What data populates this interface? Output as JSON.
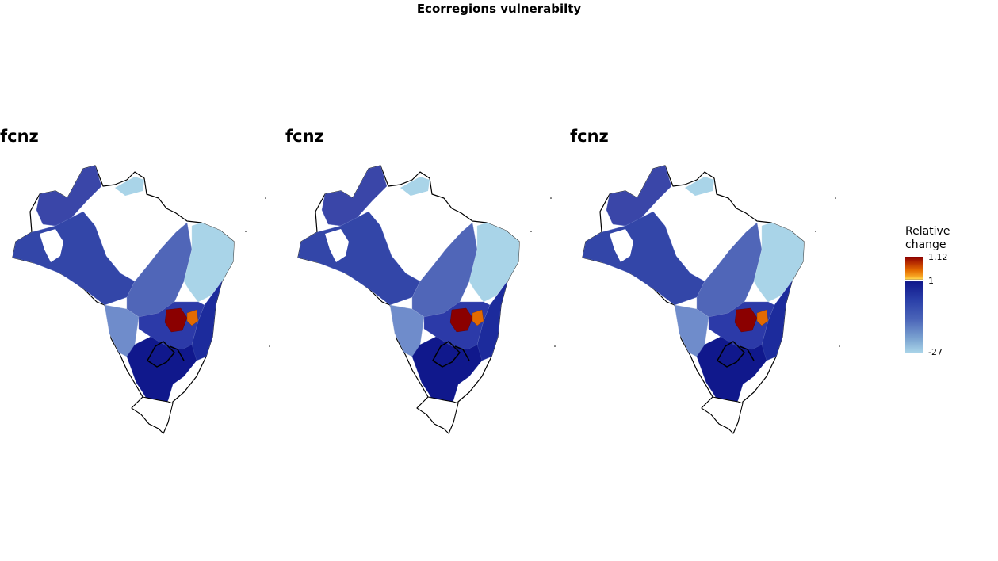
{
  "title": "Ecorregions vulnerabilty",
  "panels": [
    {
      "label": "fcnz"
    },
    {
      "label": "fcnz"
    },
    {
      "label": "fcnz"
    }
  ],
  "legend": {
    "title_line1": "Relative",
    "title_line2": "change",
    "ticks": [
      "1.12",
      "1",
      "-27"
    ]
  },
  "colors": {
    "high": "#8b0000",
    "mid_high": "#e36a00",
    "low_dark": "#10188c",
    "low_light": "#a9d4e8",
    "outline": "#000000"
  }
}
